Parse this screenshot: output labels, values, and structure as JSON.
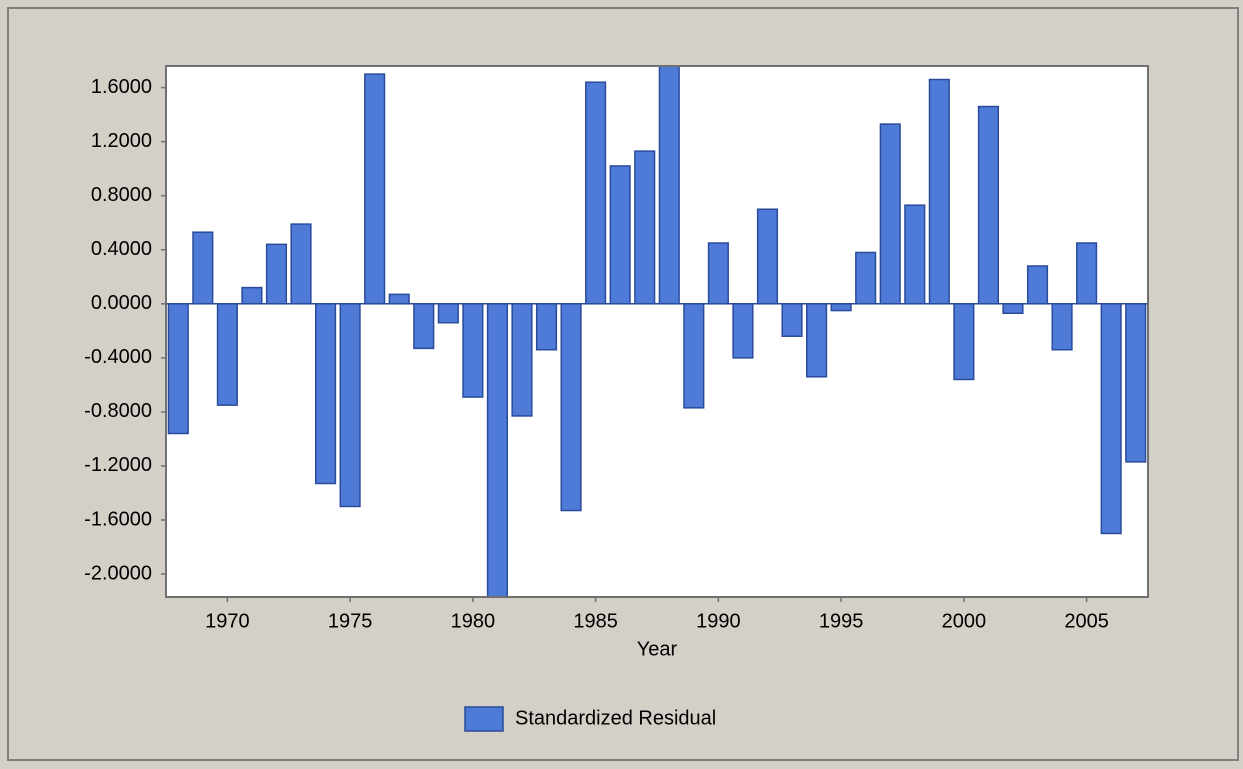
{
  "chart_data": {
    "type": "bar",
    "x_label": "Year",
    "x": [
      1968,
      1969,
      1970,
      1971,
      1972,
      1973,
      1974,
      1975,
      1976,
      1977,
      1978,
      1979,
      1980,
      1981,
      1982,
      1983,
      1984,
      1985,
      1986,
      1987,
      1988,
      1989,
      1990,
      1991,
      1992,
      1993,
      1994,
      1995,
      1996,
      1997,
      1998,
      1999,
      2000,
      2001,
      2002,
      2003,
      2004,
      2005,
      2006,
      2007
    ],
    "series": [
      {
        "name": "Standardized Residual",
        "color": "#4f7bd8",
        "values": [
          -0.96,
          0.53,
          -0.75,
          0.12,
          0.44,
          0.59,
          -1.33,
          -1.5,
          1.7,
          0.07,
          -0.33,
          -0.14,
          -0.69,
          -2.25,
          -0.83,
          -0.34,
          -1.53,
          1.64,
          1.02,
          1.13,
          1.8,
          -0.77,
          0.45,
          -0.4,
          0.7,
          -0.24,
          -0.54,
          -0.05,
          0.38,
          1.33,
          0.73,
          1.66,
          -0.56,
          1.46,
          -0.07,
          0.28,
          -0.34,
          0.45,
          -1.7,
          -1.17
        ]
      }
    ],
    "xlim": [
      1967.5,
      2007.5
    ],
    "xticks": [
      1970,
      1975,
      1980,
      1985,
      1990,
      1995,
      2000,
      2005
    ],
    "ylim": [
      -2.17,
      1.76
    ],
    "yticks": [
      {
        "value": -2.0,
        "label": "-2.0000"
      },
      {
        "value": -1.6,
        "label": "-1.6000"
      },
      {
        "value": -1.2,
        "label": "-1.2000"
      },
      {
        "value": -0.8,
        "label": "-0.8000"
      },
      {
        "value": -0.4,
        "label": "-0.4000"
      },
      {
        "value": 0,
        "label": "0.0000"
      },
      {
        "value": 0.4,
        "label": "0.4000"
      },
      {
        "value": 0.8,
        "label": "0.8000"
      },
      {
        "value": 1.2,
        "label": "1.2000"
      },
      {
        "value": 1.6,
        "label": "1.6000"
      }
    ]
  }
}
